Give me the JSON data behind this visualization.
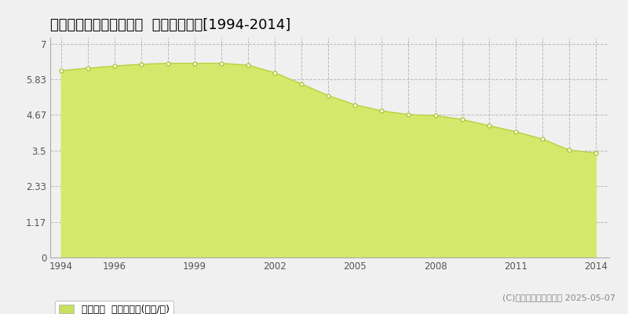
{
  "title": "伊具郡丸森町舘矢間木沼  公示地価推移[1994-2014]",
  "years": [
    1994,
    1995,
    1996,
    1997,
    1998,
    1999,
    2000,
    2001,
    2002,
    2003,
    2004,
    2005,
    2006,
    2007,
    2008,
    2009,
    2010,
    2011,
    2012,
    2013,
    2014
  ],
  "values": [
    6.12,
    6.2,
    6.27,
    6.33,
    6.36,
    6.36,
    6.36,
    6.3,
    6.05,
    5.68,
    5.3,
    5.0,
    4.8,
    4.68,
    4.65,
    4.52,
    4.32,
    4.12,
    3.88,
    3.52,
    3.42
  ],
  "fill_color": "#d4e96b",
  "line_color": "#b8d040",
  "marker_color": "#ffffff",
  "marker_edge_color": "#b0c835",
  "background_color": "#f0f0f0",
  "plot_bg_color": "#f0f0f0",
  "grid_color": "#bbbbbb",
  "ytick_values": [
    0,
    1.17,
    2.33,
    3.5,
    4.67,
    5.83,
    7
  ],
  "ytick_labels": [
    "0",
    "1.17",
    "2.33",
    "3.5",
    "4.67",
    "5.83",
    "7"
  ],
  "ylim": [
    0,
    7.2
  ],
  "xlim": [
    1993.6,
    2014.5
  ],
  "xticks": [
    1994,
    1996,
    1999,
    2002,
    2005,
    2008,
    2011,
    2014
  ],
  "legend_label": "公示地価  平均坪単価(万円/坪)",
  "legend_color": "#c8e060",
  "copyright_text": "(C)土地価格ドットコム 2025-05-07",
  "title_fontsize": 13,
  "tick_fontsize": 8.5,
  "legend_fontsize": 9,
  "copyright_fontsize": 8
}
